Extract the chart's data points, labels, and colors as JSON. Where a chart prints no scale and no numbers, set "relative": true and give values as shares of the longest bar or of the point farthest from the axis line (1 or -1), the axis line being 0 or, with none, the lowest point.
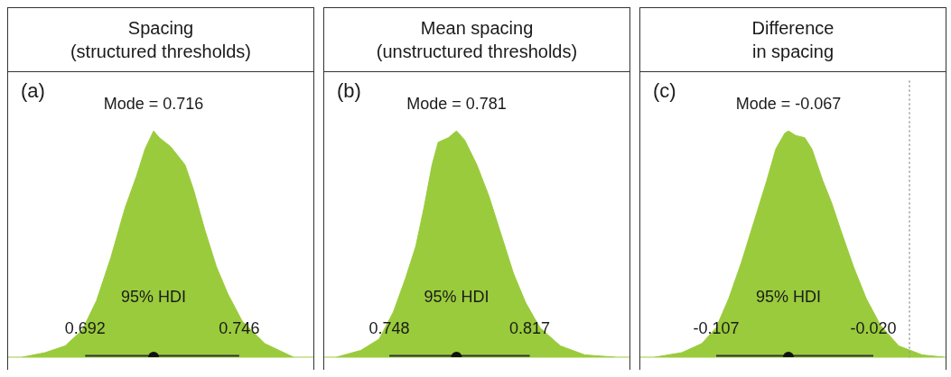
{
  "chart_data": [
    {
      "type": "area",
      "title": "Spacing\n(structured thresholds)",
      "relative": true,
      "tick_labels": "x",
      "xlim": [
        0.665,
        0.772
      ],
      "xticks": [
        {
          "value": 0.692,
          "label": "0.692"
        },
        {
          "value": 0.746,
          "label": "0.746"
        }
      ],
      "series": [
        {
          "color": "#9acb3c",
          "x": [
            0.67,
            0.678,
            0.685,
            0.691,
            0.696,
            0.701,
            0.706,
            0.71,
            0.713,
            0.716,
            0.718,
            0.722,
            0.727,
            0.73,
            0.734,
            0.738,
            0.742,
            0.747,
            0.755,
            0.765
          ],
          "values": [
            0,
            0.02,
            0.05,
            0.12,
            0.25,
            0.44,
            0.66,
            0.8,
            0.92,
            1,
            0.97,
            0.93,
            0.85,
            0.74,
            0.56,
            0.4,
            0.28,
            0.16,
            0.06,
            0
          ]
        },
        {
          "type": "line",
          "color": "#333333",
          "x": [
            0.692,
            0.746
          ],
          "values": [
            0,
            0
          ]
        },
        {
          "type": "scatter",
          "color": "#111111",
          "marker": "circle",
          "x": [
            0.716
          ],
          "values": [
            0
          ]
        }
      ],
      "annotations": [
        "(a)",
        "Mode = 0.716",
        "95% HDI"
      ]
    },
    {
      "type": "area",
      "title": "Mean spacing\n(unstructured thresholds)",
      "relative": true,
      "tick_labels": "x",
      "xlim": [
        0.716,
        0.866
      ],
      "xticks": [
        {
          "value": 0.748,
          "label": "0.748"
        },
        {
          "value": 0.817,
          "label": "0.817"
        }
      ],
      "series": [
        {
          "color": "#9acb3c",
          "x": [
            0.722,
            0.734,
            0.743,
            0.75,
            0.756,
            0.761,
            0.765,
            0.769,
            0.772,
            0.777,
            0.781,
            0.785,
            0.791,
            0.797,
            0.803,
            0.809,
            0.815,
            0.822,
            0.832,
            0.844,
            0.859
          ],
          "values": [
            0,
            0.03,
            0.08,
            0.2,
            0.35,
            0.49,
            0.66,
            0.85,
            0.95,
            0.97,
            1,
            0.96,
            0.85,
            0.71,
            0.54,
            0.37,
            0.24,
            0.13,
            0.05,
            0.01,
            0
          ]
        },
        {
          "type": "line",
          "color": "#333333",
          "x": [
            0.748,
            0.817
          ],
          "values": [
            0,
            0
          ]
        },
        {
          "type": "scatter",
          "color": "#111111",
          "marker": "circle",
          "x": [
            0.781
          ],
          "values": [
            0
          ]
        }
      ],
      "annotations": [
        "(b)",
        "Mode = 0.781",
        "95% HDI"
      ]
    },
    {
      "type": "area",
      "title": "Difference\nin spacing",
      "relative": true,
      "tick_labels": "x",
      "xlim": [
        -0.149,
        0.02
      ],
      "xticks": [
        {
          "value": -0.107,
          "label": "-0.107"
        },
        {
          "value": -0.02,
          "label": "-0.020"
        }
      ],
      "series": [
        {
          "color": "#9acb3c",
          "x": [
            -0.141,
            -0.126,
            -0.115,
            -0.107,
            -0.1,
            -0.093,
            -0.086,
            -0.079,
            -0.074,
            -0.069,
            -0.067,
            -0.063,
            -0.058,
            -0.054,
            -0.048,
            -0.043,
            -0.038,
            -0.031,
            -0.024,
            -0.016,
            -0.006,
            0.007,
            0.019
          ],
          "values": [
            0,
            0.02,
            0.06,
            0.13,
            0.26,
            0.42,
            0.6,
            0.78,
            0.92,
            0.99,
            1,
            0.98,
            0.97,
            0.92,
            0.78,
            0.68,
            0.56,
            0.4,
            0.26,
            0.14,
            0.05,
            0.01,
            0
          ]
        },
        {
          "type": "line",
          "color": "#333333",
          "x": [
            -0.107,
            -0.02
          ],
          "values": [
            0,
            0
          ]
        },
        {
          "type": "scatter",
          "color": "#111111",
          "marker": "circle",
          "x": [
            -0.067
          ],
          "values": [
            0
          ]
        }
      ],
      "ref_lines": [
        {
          "axis": "x",
          "value": 0,
          "color": "#999999",
          "line_style": "dotted"
        }
      ],
      "annotations": [
        "(c)",
        "Mode = -0.067",
        "95% HDI"
      ]
    }
  ]
}
